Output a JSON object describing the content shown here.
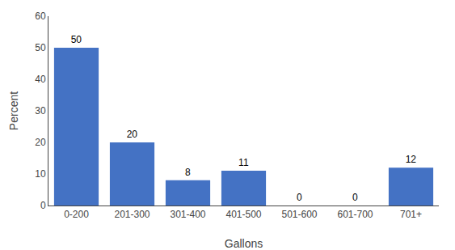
{
  "chart_data": {
    "type": "bar",
    "categories": [
      "0-200",
      "201-300",
      "301-400",
      "401-500",
      "501-600",
      "601-700",
      "701+"
    ],
    "values": [
      50,
      20,
      8,
      11,
      0,
      0,
      12
    ],
    "color": "#4472C4",
    "xlabel": "Gallons",
    "ylabel": "Percent",
    "ylim": [
      0,
      60
    ],
    "yticks": [
      0,
      10,
      20,
      30,
      40,
      50,
      60
    ],
    "grid": false,
    "data_labels": true
  }
}
